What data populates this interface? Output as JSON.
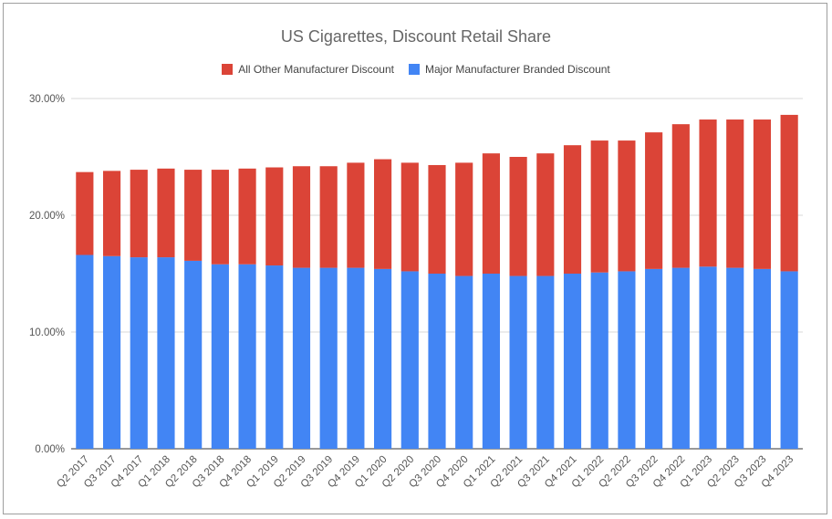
{
  "chart_data": {
    "type": "bar",
    "stacked": true,
    "title": "US Cigarettes, Discount Retail Share",
    "categories": [
      "Q2 2017",
      "Q3 2017",
      "Q4 2017",
      "Q1 2018",
      "Q2 2018",
      "Q3 2018",
      "Q4 2018",
      "Q1 2019",
      "Q2 2019",
      "Q3 2019",
      "Q4 2019",
      "Q1 2020",
      "Q2 2020",
      "Q3 2020",
      "Q4 2020",
      "Q1 2021",
      "Q2 2021",
      "Q3 2021",
      "Q4 2021",
      "Q1 2022",
      "Q2 2022",
      "Q3 2022",
      "Q4 2022",
      "Q1 2023",
      "Q2 2023",
      "Q3 2023",
      "Q4 2023"
    ],
    "series": [
      {
        "name": "Major Manufacturer Branded Discount",
        "color": "#4285F4",
        "values": [
          16.6,
          16.5,
          16.4,
          16.4,
          16.1,
          15.8,
          15.8,
          15.7,
          15.5,
          15.5,
          15.5,
          15.4,
          15.2,
          15.0,
          14.8,
          15.0,
          14.8,
          14.8,
          15.0,
          15.1,
          15.2,
          15.4,
          15.5,
          15.6,
          15.5,
          15.4,
          15.2
        ]
      },
      {
        "name": "All Other Manufacturer Discount",
        "color": "#DB4437",
        "values": [
          7.1,
          7.3,
          7.5,
          7.6,
          7.8,
          8.1,
          8.2,
          8.4,
          8.7,
          8.7,
          9.0,
          9.4,
          9.3,
          9.3,
          9.7,
          10.3,
          10.2,
          10.5,
          11.0,
          11.3,
          11.2,
          11.7,
          12.3,
          12.6,
          12.7,
          12.8,
          13.4
        ]
      }
    ],
    "legend_order": [
      "All Other Manufacturer Discount",
      "Major Manufacturer Branded Discount"
    ],
    "legend_position": "top",
    "y_ticks": [
      "0.00%",
      "10.00%",
      "20.00%",
      "30.00%"
    ],
    "ylim": [
      0,
      30
    ],
    "grid": true
  }
}
